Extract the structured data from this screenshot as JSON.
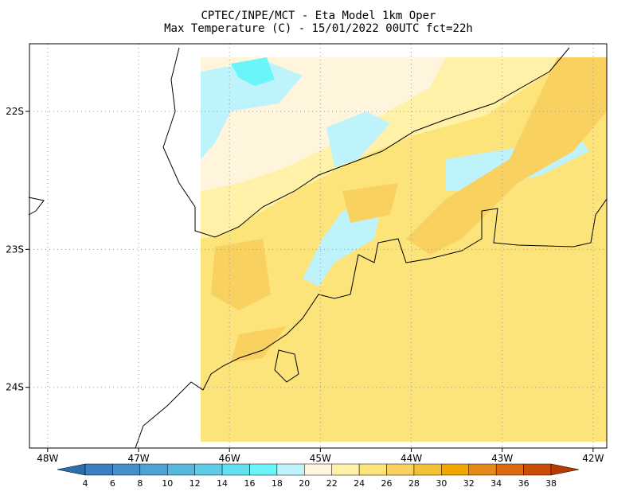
{
  "title": [
    "CPTEC/INPE/MCT -  Eta Model 1km Oper",
    "Max Temperature (C) - 15/01/2022 00UTC fct=22h"
  ],
  "map": {
    "xlim": [
      -48.2,
      -41.85
    ],
    "ylim": [
      -24.44,
      -21.51
    ],
    "xticks": [
      {
        "value": -48,
        "label": "48W"
      },
      {
        "value": -47,
        "label": "47W"
      },
      {
        "value": -46,
        "label": "46W"
      },
      {
        "value": -45,
        "label": "45W"
      },
      {
        "value": -44,
        "label": "44W"
      },
      {
        "value": -43,
        "label": "43W"
      },
      {
        "value": -42,
        "label": "42W"
      }
    ],
    "yticks": [
      {
        "value": -22,
        "label": "22S"
      },
      {
        "value": -23,
        "label": "23S"
      },
      {
        "value": -24,
        "label": "24S"
      }
    ],
    "grid": true
  },
  "colorbar": {
    "levels": [
      4,
      6,
      8,
      10,
      12,
      14,
      16,
      18,
      20,
      22,
      24,
      26,
      28,
      30,
      32,
      34,
      36,
      38
    ],
    "colors": [
      "#2a6ead",
      "#3a7fc0",
      "#4590c8",
      "#4fa3d3",
      "#58b7dd",
      "#5ecce6",
      "#63dfee",
      "#6af5f8",
      "#bff3fb",
      "#fff5dc",
      "#fff2a8",
      "#fde47a",
      "#f8d160",
      "#f3c137",
      "#f0a800",
      "#e48a18",
      "#d86a10",
      "#c84e08",
      "#b83a00"
    ]
  }
}
